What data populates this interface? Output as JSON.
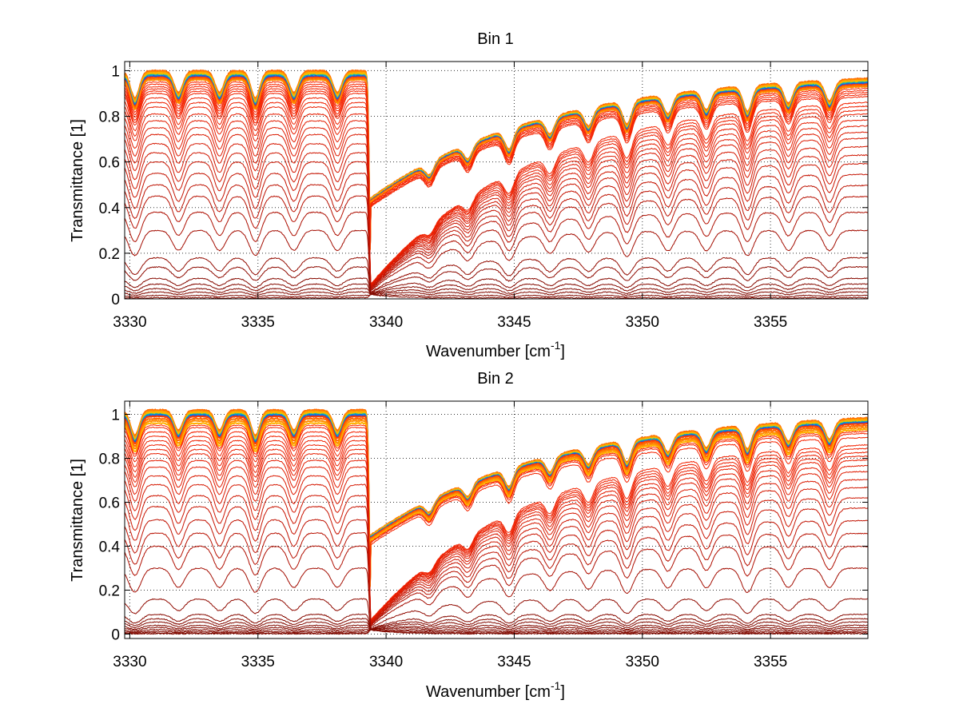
{
  "chart_data": [
    {
      "type": "line",
      "title": "Bin 1",
      "xlabel": "Wavenumber [cm",
      "xlabel_sup": "-1",
      "xlabel_close": "]",
      "ylabel": "Transmittance [1]",
      "xlim": [
        3329.8,
        3358.8
      ],
      "ylim": [
        0,
        1.04
      ],
      "xticks": [
        "3330",
        "3335",
        "3340",
        "3345",
        "3350",
        "3355"
      ],
      "yticks": [
        "0",
        "0.2",
        "0.4",
        "0.6",
        "0.8",
        "1"
      ],
      "grid": true,
      "series_count": 38,
      "baseline_levels": [
        1.0,
        0.995,
        0.99,
        0.985,
        0.98,
        0.975,
        0.97,
        0.965,
        0.96,
        0.95,
        0.94,
        0.93,
        0.92,
        0.91,
        0.9,
        0.88,
        0.86,
        0.84,
        0.81,
        0.78,
        0.75,
        0.72,
        0.68,
        0.64,
        0.6,
        0.55,
        0.5,
        0.45,
        0.38,
        0.3,
        0.18,
        0.14,
        0.09,
        0.065,
        0.045,
        0.03,
        0.015,
        0.005
      ],
      "absorption_lines_x": [
        3330.2,
        3331.9,
        3333.5,
        3334.9,
        3336.4,
        3338.1,
        3339.4,
        3341.7,
        3343.2,
        3344.8,
        3346.4,
        3347.9,
        3349.4,
        3351.0,
        3352.5,
        3354.1,
        3355.7,
        3357.3
      ]
    },
    {
      "type": "line",
      "title": "Bin 2",
      "xlabel": "Wavenumber [cm",
      "xlabel_sup": "-1",
      "xlabel_close": "]",
      "ylabel": "Transmittance [1]",
      "xlim": [
        3329.8,
        3358.8
      ],
      "ylim": [
        -0.02,
        1.06
      ],
      "xticks": [
        "3330",
        "3335",
        "3340",
        "3345",
        "3350",
        "3355"
      ],
      "yticks": [
        "0",
        "0.2",
        "0.4",
        "0.6",
        "0.8",
        "1"
      ],
      "grid": true,
      "series_count": 38,
      "baseline_levels": [
        1.02,
        1.015,
        1.01,
        1.005,
        1.0,
        0.995,
        0.99,
        0.98,
        0.97,
        0.96,
        0.95,
        0.94,
        0.92,
        0.9,
        0.88,
        0.86,
        0.84,
        0.82,
        0.79,
        0.76,
        0.72,
        0.68,
        0.63,
        0.58,
        0.52,
        0.46,
        0.4,
        0.3,
        0.16,
        0.09,
        0.07,
        0.055,
        0.04,
        0.03,
        0.02,
        0.012,
        0.006,
        0.002
      ],
      "absorption_lines_x": [
        3330.2,
        3331.9,
        3333.5,
        3334.9,
        3336.4,
        3338.1,
        3339.4,
        3341.7,
        3343.2,
        3344.8,
        3346.4,
        3347.9,
        3349.4,
        3351.0,
        3352.5,
        3354.1,
        3355.7,
        3357.3
      ]
    }
  ]
}
